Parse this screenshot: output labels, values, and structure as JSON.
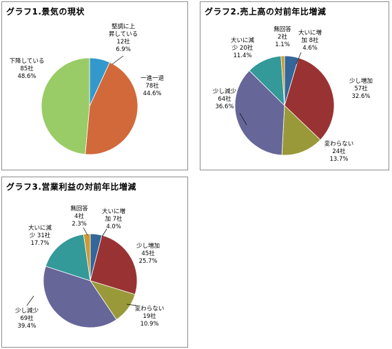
{
  "chart_data": [
    {
      "type": "pie",
      "title": "グラフ1.景気の現状",
      "slices": [
        {
          "label_lines": [
            "堅調に上",
            "昇している",
            "12社",
            "6.9%"
          ],
          "count": 12,
          "percent": 6.9,
          "color": "#3399cc"
        },
        {
          "label_lines": [
            "一進一退",
            "78社",
            "44.6%"
          ],
          "count": 78,
          "percent": 44.6,
          "color": "#d2693a"
        },
        {
          "label_lines": [
            "下降している",
            "85社",
            "48.6%"
          ],
          "count": 85,
          "percent": 48.6,
          "color": "#99cc66"
        }
      ]
    },
    {
      "type": "pie",
      "title": "グラフ2.売上高の対前年比増減",
      "slices": [
        {
          "label_lines": [
            "大いに増",
            "加 8社",
            "4.6%"
          ],
          "count": 8,
          "percent": 4.6,
          "color": "#336699"
        },
        {
          "label_lines": [
            "少し増加",
            "57社",
            "32.6%"
          ],
          "count": 57,
          "percent": 32.6,
          "color": "#993333"
        },
        {
          "label_lines": [
            "変わらない",
            "24社",
            "13.7%"
          ],
          "count": 24,
          "percent": 13.7,
          "color": "#99993a"
        },
        {
          "label_lines": [
            "少し減少",
            "64社",
            "36.6%"
          ],
          "count": 64,
          "percent": 36.6,
          "color": "#666699"
        },
        {
          "label_lines": [
            "大いに減",
            "少 20社",
            "11.4%"
          ],
          "count": 20,
          "percent": 11.4,
          "color": "#339999"
        },
        {
          "label_lines": [
            "無回答",
            "2社",
            "1.1%"
          ],
          "count": 2,
          "percent": 1.1,
          "color": "#cc9933"
        }
      ]
    },
    {
      "type": "pie",
      "title": "グラフ3.営業利益の対前年比増減",
      "slices": [
        {
          "label_lines": [
            "大いに増",
            "加 7社",
            "4.0%"
          ],
          "count": 7,
          "percent": 4.0,
          "color": "#336699"
        },
        {
          "label_lines": [
            "少し増加",
            "45社",
            "25.7%"
          ],
          "count": 45,
          "percent": 25.7,
          "color": "#993333"
        },
        {
          "label_lines": [
            "変わらない",
            "19社",
            "10.9%"
          ],
          "count": 19,
          "percent": 10.9,
          "color": "#99993a"
        },
        {
          "label_lines": [
            "少し減少",
            "69社",
            "39.4%"
          ],
          "count": 69,
          "percent": 39.4,
          "color": "#666699"
        },
        {
          "label_lines": [
            "大いに減",
            "少 31社",
            "17.7%"
          ],
          "count": 31,
          "percent": 17.7,
          "color": "#339999"
        },
        {
          "label_lines": [
            "無回答",
            "4社",
            "2.3%"
          ],
          "count": 4,
          "percent": 2.3,
          "color": "#cc9933"
        }
      ]
    }
  ]
}
